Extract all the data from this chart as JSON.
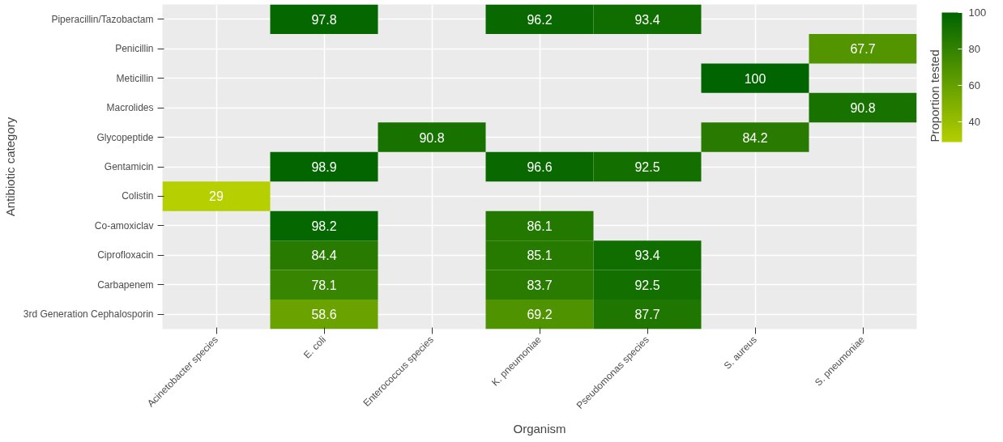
{
  "chart_data": {
    "type": "heatmap",
    "xlabel": "Organism",
    "ylabel": "Antibiotic category",
    "clabel": "Proportion tested",
    "categories": [
      "Acinetobacter species",
      "E. coli",
      "Enterococcus species",
      "K. pneumoniae",
      "Pseudomonas species",
      "S. aureus",
      "S. pneumoniae"
    ],
    "y_categories": [
      "Piperacillin/Tazobactam",
      "Penicillin",
      "Meticillin",
      "Macrolides",
      "Glycopeptide",
      "Gentamicin",
      "Colistin",
      "Co-amoxiclav",
      "Ciprofloxacin",
      "Carbapenem",
      "3rd Generation Cephalosporin"
    ],
    "cells": [
      [
        null,
        97.8,
        null,
        96.2,
        93.4,
        null,
        null
      ],
      [
        null,
        null,
        null,
        null,
        null,
        null,
        67.7
      ],
      [
        null,
        null,
        null,
        null,
        null,
        100,
        null
      ],
      [
        null,
        null,
        null,
        null,
        null,
        null,
        90.8
      ],
      [
        null,
        null,
        90.8,
        null,
        null,
        84.2,
        null
      ],
      [
        null,
        98.9,
        null,
        96.6,
        92.5,
        null,
        null
      ],
      [
        29,
        null,
        null,
        null,
        null,
        null,
        null
      ],
      [
        null,
        98.2,
        null,
        86.1,
        null,
        null,
        null
      ],
      [
        null,
        84.4,
        null,
        85.1,
        93.4,
        null,
        null
      ],
      [
        null,
        78.1,
        null,
        83.7,
        92.5,
        null,
        null
      ],
      [
        null,
        58.6,
        null,
        69.2,
        87.7,
        null,
        null
      ]
    ],
    "clim": [
      29,
      100
    ],
    "cticks": [
      40,
      60,
      80,
      100
    ],
    "data_labels": true,
    "grid": true
  }
}
